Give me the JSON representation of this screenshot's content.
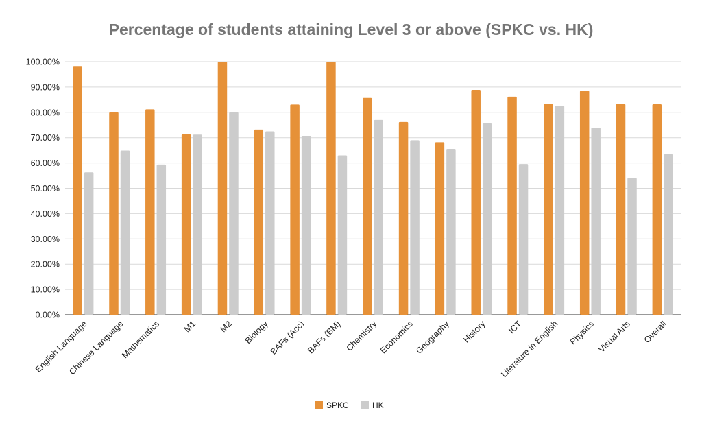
{
  "chart_data": {
    "type": "bar",
    "title": "Percentage of students attaining Level 3 or above (SPKC vs. HK)",
    "xlabel": "",
    "ylabel": "",
    "ylim": [
      0,
      100
    ],
    "yticks": [
      "0.00%",
      "10.00%",
      "20.00%",
      "30.00%",
      "40.00%",
      "50.00%",
      "60.00%",
      "70.00%",
      "80.00%",
      "90.00%",
      "100.00%"
    ],
    "grid": true,
    "legend_position": "bottom",
    "categories": [
      "English Language",
      "Chinese Language",
      "Mathematics",
      "M1",
      "M2",
      "Biology",
      "BAFs (Acc)",
      "BAFs (BM)",
      "Chemistry",
      "Economics",
      "Geography",
      "History",
      "ICT",
      "Literature in English",
      "Physics",
      "Visual Arts",
      "Overall"
    ],
    "series": [
      {
        "name": "SPKC",
        "color": "#e69138",
        "values": [
          98.3,
          80.0,
          81.2,
          71.3,
          100.0,
          73.2,
          83.1,
          100.0,
          85.7,
          76.2,
          68.2,
          88.9,
          86.2,
          83.3,
          88.5,
          83.3,
          83.2
        ]
      },
      {
        "name": "HK",
        "color": "#cccccc",
        "values": [
          56.3,
          64.9,
          59.4,
          71.2,
          80.0,
          72.5,
          70.6,
          63.0,
          77.0,
          69.0,
          65.3,
          75.6,
          59.6,
          82.6,
          74.0,
          54.1,
          63.4
        ]
      }
    ]
  }
}
